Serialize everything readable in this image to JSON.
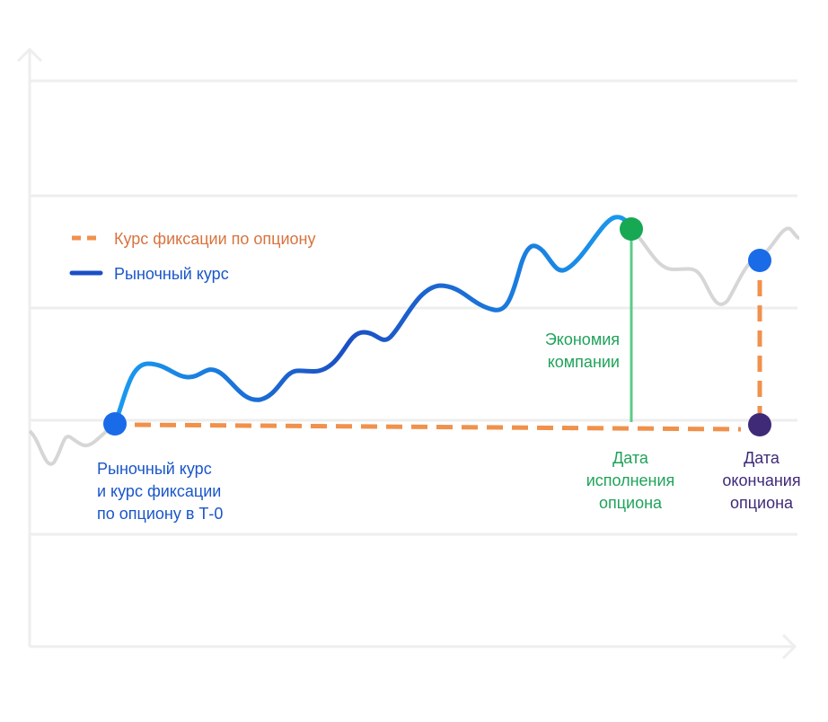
{
  "legend": {
    "strike_rate": "Курс фиксации по опциону",
    "market_rate": "Рыночный курс"
  },
  "annotations": {
    "start": [
      "Рыночный курс",
      "и курс фиксации",
      "по опциону в Т-0"
    ],
    "savings": [
      "Экономия",
      "компании"
    ],
    "exercise_date": [
      "Дата",
      "исполнения",
      "опциона"
    ],
    "expiry_date": [
      "Дата",
      "окончания",
      "опциона"
    ]
  }
}
